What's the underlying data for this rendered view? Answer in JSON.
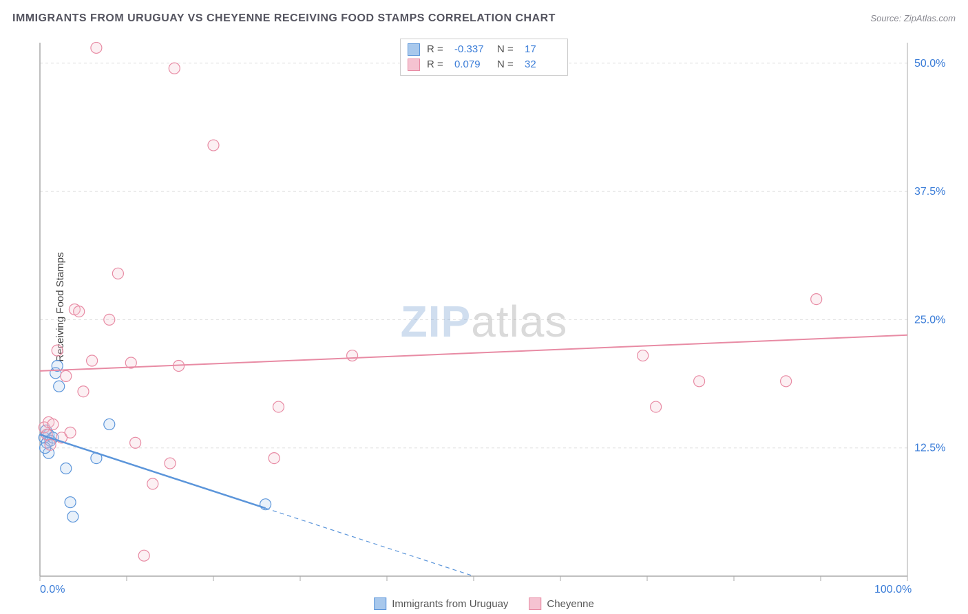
{
  "title": "IMMIGRANTS FROM URUGUAY VS CHEYENNE RECEIVING FOOD STAMPS CORRELATION CHART",
  "source_label": "Source:",
  "source_name": "ZipAtlas.com",
  "watermark_a": "ZIP",
  "watermark_b": "atlas",
  "y_axis_label": "Receiving Food Stamps",
  "chart": {
    "type": "scatter",
    "x_domain": [
      0,
      100
    ],
    "y_domain": [
      0,
      52
    ],
    "x_ticks": [
      0,
      10,
      20,
      30,
      40,
      50,
      60,
      70,
      80,
      90,
      100
    ],
    "x_tick_labels_shown": {
      "0": "0.0%",
      "100": "100.0%"
    },
    "y_gridlines": [
      12.5,
      25.0,
      37.5,
      50.0
    ],
    "y_tick_labels": [
      "12.5%",
      "25.0%",
      "37.5%",
      "50.0%"
    ],
    "axis_label_color": "#3b7dd8",
    "grid_color": "#dddddd",
    "axis_color": "#aaaaaa",
    "background_color": "#ffffff",
    "marker_radius": 8,
    "marker_stroke_width": 1.2,
    "marker_fill_opacity": 0.25,
    "series": [
      {
        "name": "Immigrants from Uruguay",
        "color_stroke": "#5b95da",
        "color_fill": "#a8c8ec",
        "R": "-0.337",
        "N": "17",
        "trend": {
          "x1": 0,
          "y1": 13.8,
          "x2": 50,
          "y2": 0,
          "solid_until_x": 26,
          "stroke_width": 2.5
        },
        "points": [
          {
            "x": 0.5,
            "y": 13.5
          },
          {
            "x": 0.8,
            "y": 13.0
          },
          {
            "x": 1.0,
            "y": 13.8
          },
          {
            "x": 0.7,
            "y": 14.2
          },
          {
            "x": 1.2,
            "y": 13.2
          },
          {
            "x": 1.5,
            "y": 13.5
          },
          {
            "x": 1.8,
            "y": 19.8
          },
          {
            "x": 2.0,
            "y": 20.5
          },
          {
            "x": 2.2,
            "y": 18.5
          },
          {
            "x": 3.0,
            "y": 10.5
          },
          {
            "x": 3.5,
            "y": 7.2
          },
          {
            "x": 3.8,
            "y": 5.8
          },
          {
            "x": 6.5,
            "y": 11.5
          },
          {
            "x": 8.0,
            "y": 14.8
          },
          {
            "x": 1.0,
            "y": 12.0
          },
          {
            "x": 0.6,
            "y": 12.5
          },
          {
            "x": 26.0,
            "y": 7.0
          }
        ]
      },
      {
        "name": "Cheyenne",
        "color_stroke": "#e88ba4",
        "color_fill": "#f5c3d1",
        "R": "0.079",
        "N": "32",
        "trend": {
          "x1": 0,
          "y1": 20.0,
          "x2": 100,
          "y2": 23.5,
          "stroke_width": 2
        },
        "points": [
          {
            "x": 0.5,
            "y": 14.5
          },
          {
            "x": 1.0,
            "y": 15.0
          },
          {
            "x": 1.5,
            "y": 14.8
          },
          {
            "x": 2.0,
            "y": 22.0
          },
          {
            "x": 2.5,
            "y": 13.5
          },
          {
            "x": 3.0,
            "y": 19.5
          },
          {
            "x": 4.0,
            "y": 26.0
          },
          {
            "x": 4.5,
            "y": 25.8
          },
          {
            "x": 5.0,
            "y": 18.0
          },
          {
            "x": 6.0,
            "y": 21.0
          },
          {
            "x": 6.5,
            "y": 51.5
          },
          {
            "x": 8.0,
            "y": 25.0
          },
          {
            "x": 9.0,
            "y": 29.5
          },
          {
            "x": 10.5,
            "y": 20.8
          },
          {
            "x": 11.0,
            "y": 13.0
          },
          {
            "x": 12.0,
            "y": 2.0
          },
          {
            "x": 13.0,
            "y": 9.0
          },
          {
            "x": 15.0,
            "y": 11.0
          },
          {
            "x": 15.5,
            "y": 49.5
          },
          {
            "x": 16.0,
            "y": 20.5
          },
          {
            "x": 20.0,
            "y": 42.0
          },
          {
            "x": 27.5,
            "y": 16.5
          },
          {
            "x": 27.0,
            "y": 11.5
          },
          {
            "x": 36.0,
            "y": 21.5
          },
          {
            "x": 69.5,
            "y": 21.5
          },
          {
            "x": 71.0,
            "y": 16.5
          },
          {
            "x": 76.0,
            "y": 19.0
          },
          {
            "x": 86.0,
            "y": 19.0
          },
          {
            "x": 89.5,
            "y": 27.0
          },
          {
            "x": 1.2,
            "y": 12.8
          },
          {
            "x": 0.8,
            "y": 13.8
          },
          {
            "x": 3.5,
            "y": 14.0
          }
        ]
      }
    ]
  },
  "bottom_legend": [
    {
      "label": "Immigrants from Uruguay",
      "stroke": "#5b95da",
      "fill": "#a8c8ec"
    },
    {
      "label": "Cheyenne",
      "stroke": "#e88ba4",
      "fill": "#f5c3d1"
    }
  ]
}
